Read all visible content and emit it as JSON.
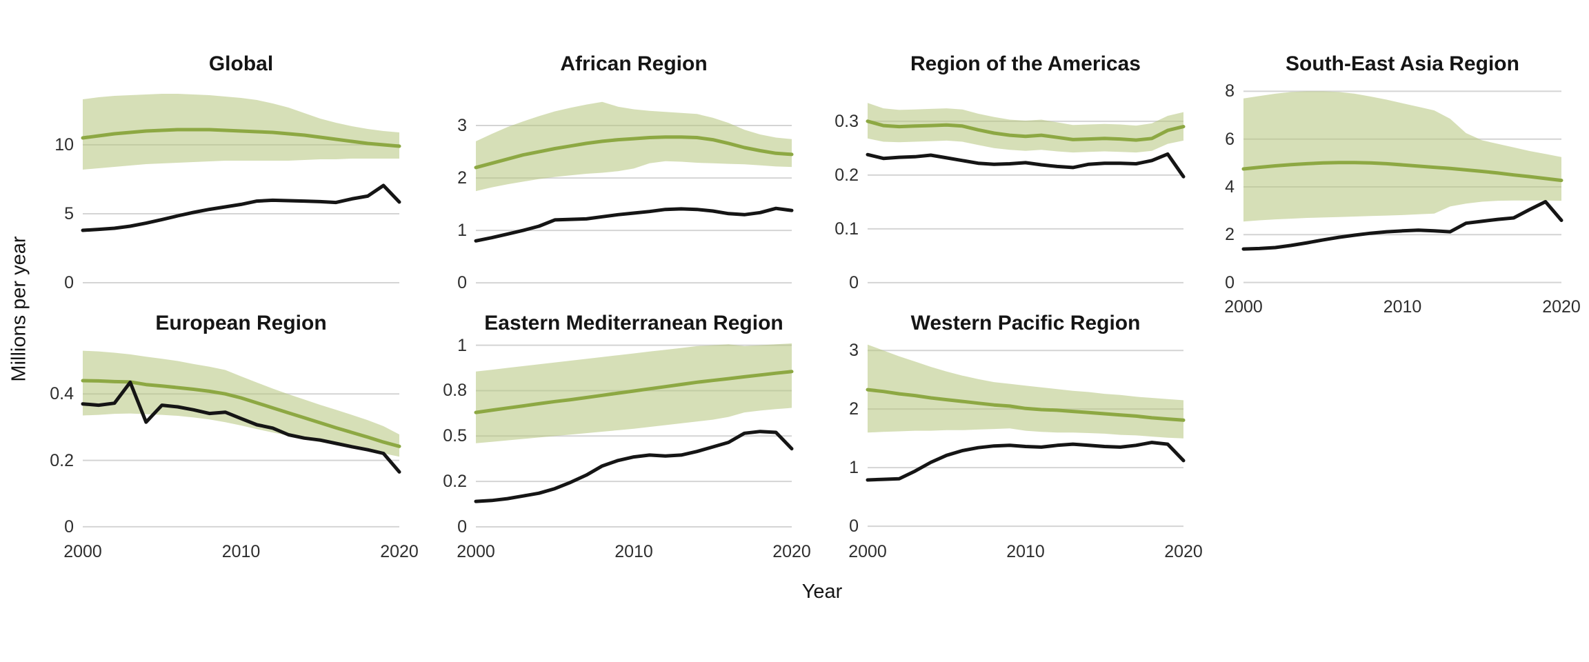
{
  "chart_data": {
    "type": "line",
    "x_axis_title": "Year",
    "y_axis_title": "Millions per year",
    "x": [
      2000,
      2001,
      2002,
      2003,
      2004,
      2005,
      2006,
      2007,
      2008,
      2009,
      2010,
      2011,
      2012,
      2013,
      2014,
      2015,
      2016,
      2017,
      2018,
      2019,
      2020
    ],
    "x_ticks": [
      {
        "value": 2000,
        "label": "2000"
      },
      {
        "value": 2010,
        "label": "2010"
      },
      {
        "value": 2020,
        "label": "2020"
      }
    ],
    "colors": {
      "green_line": "#8da843",
      "ribbon_fill": "#b4c47c",
      "ribbon_opacity": 0.55,
      "black_line": "#151515",
      "gridline": "#d4d4d4",
      "title_text": "#151515",
      "tick_text": "#2e2e2e"
    },
    "grid": "horizontal-only",
    "legend": "none",
    "panels": [
      {
        "id": "global",
        "title": "Global",
        "show_x_labels": false,
        "ylim": [
          -0.5,
          14.4
        ],
        "y_ticks": [
          {
            "v": 0,
            "label": "0"
          },
          {
            "v": 5,
            "label": "5"
          },
          {
            "v": 10,
            "label": "10"
          }
        ],
        "green_line": [
          10.5,
          10.65,
          10.8,
          10.9,
          11.0,
          11.05,
          11.1,
          11.1,
          11.1,
          11.05,
          11.0,
          10.95,
          10.9,
          10.8,
          10.7,
          10.55,
          10.4,
          10.25,
          10.1,
          10.0,
          9.9
        ],
        "ribbon_low": [
          8.2,
          8.3,
          8.4,
          8.5,
          8.6,
          8.65,
          8.7,
          8.75,
          8.8,
          8.85,
          8.85,
          8.85,
          8.85,
          8.85,
          8.9,
          8.95,
          8.95,
          9.0,
          9.0,
          9.0,
          9.0
        ],
        "ribbon_high": [
          13.3,
          13.45,
          13.55,
          13.6,
          13.65,
          13.7,
          13.7,
          13.65,
          13.6,
          13.5,
          13.4,
          13.25,
          13.0,
          12.7,
          12.3,
          11.9,
          11.6,
          11.35,
          11.15,
          11.0,
          10.9
        ],
        "black_line": [
          3.8,
          3.87,
          3.95,
          4.1,
          4.32,
          4.58,
          4.85,
          5.1,
          5.32,
          5.5,
          5.68,
          5.92,
          5.98,
          5.95,
          5.92,
          5.88,
          5.82,
          6.08,
          6.28,
          7.05,
          5.85
        ]
      },
      {
        "id": "african",
        "title": "African Region",
        "show_x_labels": false,
        "ylim": [
          -0.13,
          3.79
        ],
        "y_ticks": [
          {
            "v": 0,
            "label": "0"
          },
          {
            "v": 1,
            "label": "1"
          },
          {
            "v": 2,
            "label": "2"
          },
          {
            "v": 3,
            "label": "3"
          }
        ],
        "green_line": [
          2.2,
          2.28,
          2.36,
          2.44,
          2.5,
          2.56,
          2.61,
          2.66,
          2.7,
          2.73,
          2.75,
          2.77,
          2.78,
          2.78,
          2.77,
          2.73,
          2.66,
          2.58,
          2.52,
          2.47,
          2.45
        ],
        "ribbon_low": [
          1.75,
          1.82,
          1.88,
          1.93,
          1.98,
          2.02,
          2.05,
          2.08,
          2.1,
          2.13,
          2.18,
          2.28,
          2.32,
          2.31,
          2.29,
          2.28,
          2.27,
          2.26,
          2.24,
          2.22,
          2.21
        ],
        "ribbon_high": [
          2.7,
          2.84,
          2.97,
          3.08,
          3.18,
          3.27,
          3.34,
          3.4,
          3.45,
          3.36,
          3.31,
          3.28,
          3.26,
          3.24,
          3.22,
          3.15,
          3.05,
          2.92,
          2.83,
          2.77,
          2.74
        ],
        "black_line": [
          0.8,
          0.86,
          0.93,
          1.0,
          1.08,
          1.2,
          1.21,
          1.22,
          1.26,
          1.3,
          1.33,
          1.36,
          1.4,
          1.41,
          1.4,
          1.37,
          1.32,
          1.3,
          1.34,
          1.42,
          1.38
        ]
      },
      {
        "id": "americas",
        "title": "Region of the Americas",
        "show_x_labels": false,
        "ylim": [
          -0.013,
          0.369
        ],
        "y_ticks": [
          {
            "v": 0,
            "label": "0"
          },
          {
            "v": 0.1,
            "label": "0.1"
          },
          {
            "v": 0.2,
            "label": "0.2"
          },
          {
            "v": 0.3,
            "label": "0.3"
          }
        ],
        "green_line": [
          0.3,
          0.292,
          0.29,
          0.291,
          0.292,
          0.293,
          0.291,
          0.284,
          0.278,
          0.274,
          0.272,
          0.274,
          0.27,
          0.266,
          0.267,
          0.268,
          0.267,
          0.265,
          0.268,
          0.283,
          0.29
        ],
        "ribbon_low": [
          0.268,
          0.262,
          0.261,
          0.262,
          0.263,
          0.264,
          0.262,
          0.256,
          0.25,
          0.247,
          0.245,
          0.247,
          0.244,
          0.242,
          0.243,
          0.244,
          0.243,
          0.242,
          0.245,
          0.258,
          0.264
        ],
        "ribbon_high": [
          0.334,
          0.324,
          0.321,
          0.322,
          0.323,
          0.324,
          0.322,
          0.314,
          0.308,
          0.303,
          0.301,
          0.303,
          0.298,
          0.293,
          0.294,
          0.295,
          0.294,
          0.292,
          0.296,
          0.31,
          0.317
        ],
        "black_line": [
          0.238,
          0.231,
          0.233,
          0.234,
          0.237,
          0.232,
          0.227,
          0.222,
          0.22,
          0.221,
          0.223,
          0.219,
          0.216,
          0.214,
          0.22,
          0.222,
          0.222,
          0.221,
          0.227,
          0.239,
          0.197
        ]
      },
      {
        "id": "sea",
        "title": "South-East Asia Region",
        "show_x_labels": true,
        "ylim": [
          -0.3,
          8.3
        ],
        "y_ticks": [
          {
            "v": 0,
            "label": "0"
          },
          {
            "v": 2,
            "label": "2"
          },
          {
            "v": 4,
            "label": "4"
          },
          {
            "v": 6,
            "label": "6"
          },
          {
            "v": 8,
            "label": "8"
          }
        ],
        "green_line": [
          4.75,
          4.82,
          4.88,
          4.93,
          4.97,
          5.0,
          5.02,
          5.02,
          5.0,
          4.97,
          4.92,
          4.87,
          4.82,
          4.77,
          4.71,
          4.65,
          4.58,
          4.5,
          4.43,
          4.35,
          4.27
        ],
        "ribbon_low": [
          2.55,
          2.6,
          2.64,
          2.67,
          2.7,
          2.72,
          2.74,
          2.76,
          2.78,
          2.8,
          2.82,
          2.85,
          2.88,
          3.18,
          3.3,
          3.38,
          3.42,
          3.43,
          3.43,
          3.43,
          3.42
        ],
        "ribbon_high": [
          7.7,
          7.8,
          7.9,
          7.97,
          8.0,
          8.0,
          7.97,
          7.9,
          7.78,
          7.65,
          7.5,
          7.35,
          7.2,
          6.85,
          6.25,
          5.95,
          5.8,
          5.65,
          5.5,
          5.38,
          5.25
        ],
        "black_line": [
          1.4,
          1.42,
          1.46,
          1.55,
          1.66,
          1.78,
          1.89,
          1.98,
          2.06,
          2.12,
          2.16,
          2.19,
          2.16,
          2.12,
          2.48,
          2.56,
          2.64,
          2.7,
          3.05,
          3.38,
          2.6
        ]
      },
      {
        "id": "european",
        "title": "European Region",
        "show_x_labels": true,
        "ylim": [
          -0.023,
          0.552
        ],
        "y_ticks": [
          {
            "v": 0,
            "label": "0"
          },
          {
            "v": 0.2,
            "label": "0.2"
          },
          {
            "v": 0.4,
            "label": "0.4"
          }
        ],
        "green_line": [
          0.44,
          0.439,
          0.437,
          0.436,
          0.428,
          0.424,
          0.419,
          0.414,
          0.408,
          0.4,
          0.388,
          0.373,
          0.358,
          0.343,
          0.328,
          0.313,
          0.298,
          0.284,
          0.27,
          0.255,
          0.242
        ],
        "ribbon_low": [
          0.335,
          0.337,
          0.34,
          0.341,
          0.339,
          0.337,
          0.334,
          0.329,
          0.323,
          0.315,
          0.305,
          0.294,
          0.284,
          0.274,
          0.264,
          0.255,
          0.246,
          0.238,
          0.23,
          0.221,
          0.211
        ],
        "ribbon_high": [
          0.53,
          0.528,
          0.524,
          0.519,
          0.512,
          0.506,
          0.499,
          0.49,
          0.482,
          0.472,
          0.453,
          0.434,
          0.416,
          0.399,
          0.383,
          0.367,
          0.352,
          0.337,
          0.321,
          0.303,
          0.278
        ],
        "black_line": [
          0.37,
          0.366,
          0.372,
          0.435,
          0.315,
          0.366,
          0.361,
          0.352,
          0.341,
          0.345,
          0.326,
          0.307,
          0.297,
          0.277,
          0.267,
          0.261,
          0.251,
          0.241,
          0.232,
          0.221,
          0.165
        ]
      },
      {
        "id": "emr",
        "title": "Eastern Mediterranean Region",
        "show_x_labels": true,
        "ylim": [
          -0.042,
          1.01
        ],
        "y_ticks": [
          {
            "v": 0,
            "label": "0"
          },
          {
            "v": 0.25,
            "label": "0.2"
          },
          {
            "v": 0.5,
            "label": "0.5"
          },
          {
            "v": 0.75,
            "label": "0.8"
          },
          {
            "v": 1,
            "label": "1"
          }
        ],
        "green_line": [
          0.63,
          0.642,
          0.654,
          0.666,
          0.678,
          0.69,
          0.7,
          0.712,
          0.724,
          0.736,
          0.748,
          0.76,
          0.772,
          0.784,
          0.796,
          0.806,
          0.816,
          0.826,
          0.836,
          0.846,
          0.855
        ],
        "ribbon_low": [
          0.46,
          0.468,
          0.476,
          0.484,
          0.492,
          0.5,
          0.508,
          0.516,
          0.524,
          0.532,
          0.54,
          0.55,
          0.56,
          0.57,
          0.58,
          0.59,
          0.605,
          0.63,
          0.64,
          0.648,
          0.655
        ],
        "ribbon_high": [
          0.855,
          0.865,
          0.875,
          0.885,
          0.895,
          0.905,
          0.915,
          0.925,
          0.935,
          0.945,
          0.955,
          0.965,
          0.975,
          0.985,
          0.995,
          1.0,
          1.005,
          0.995,
          1.0,
          1.005,
          1.01
        ],
        "black_line": [
          0.14,
          0.145,
          0.155,
          0.17,
          0.185,
          0.21,
          0.245,
          0.285,
          0.335,
          0.365,
          0.385,
          0.395,
          0.39,
          0.395,
          0.415,
          0.44,
          0.465,
          0.515,
          0.525,
          0.52,
          0.43
        ]
      },
      {
        "id": "wpr",
        "title": "Western Pacific Region",
        "show_x_labels": true,
        "ylim": [
          -0.14,
          3.12
        ],
        "y_ticks": [
          {
            "v": 0,
            "label": "0"
          },
          {
            "v": 1,
            "label": "1"
          },
          {
            "v": 2,
            "label": "2"
          },
          {
            "v": 3,
            "label": "3"
          }
        ],
        "green_line": [
          2.33,
          2.3,
          2.26,
          2.23,
          2.19,
          2.16,
          2.13,
          2.1,
          2.07,
          2.05,
          2.01,
          1.99,
          1.98,
          1.96,
          1.94,
          1.92,
          1.9,
          1.88,
          1.85,
          1.83,
          1.81
        ],
        "ribbon_low": [
          1.6,
          1.61,
          1.62,
          1.63,
          1.63,
          1.64,
          1.64,
          1.65,
          1.66,
          1.67,
          1.63,
          1.61,
          1.6,
          1.6,
          1.59,
          1.58,
          1.56,
          1.55,
          1.53,
          1.51,
          1.5
        ],
        "ribbon_high": [
          3.1,
          3.0,
          2.9,
          2.81,
          2.72,
          2.64,
          2.57,
          2.51,
          2.46,
          2.43,
          2.4,
          2.37,
          2.34,
          2.31,
          2.29,
          2.26,
          2.24,
          2.21,
          2.19,
          2.17,
          2.15
        ],
        "black_line": [
          0.79,
          0.8,
          0.81,
          0.94,
          1.09,
          1.21,
          1.29,
          1.34,
          1.37,
          1.38,
          1.36,
          1.35,
          1.38,
          1.4,
          1.38,
          1.36,
          1.35,
          1.38,
          1.43,
          1.4,
          1.12
        ]
      }
    ]
  }
}
